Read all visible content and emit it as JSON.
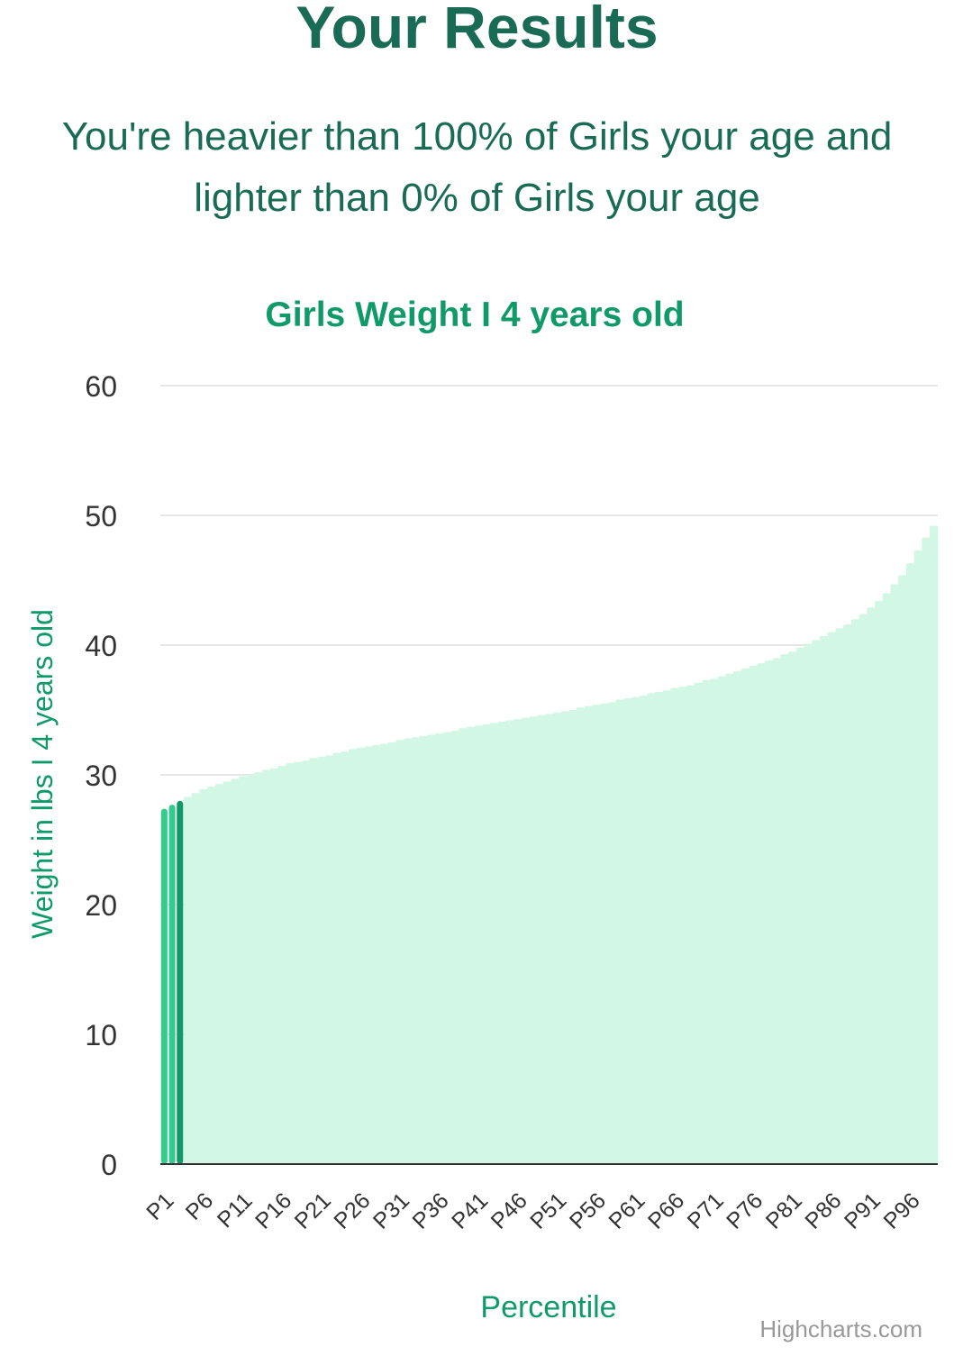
{
  "page": {
    "title": "Your Results",
    "result_line1": "You're heavier than 100% of Girls your age and",
    "result_line2": "lighter than 0% of Girls your age"
  },
  "colors": {
    "heading": "#1a6b56",
    "accent": "#0f9a68",
    "bar_fill": "#d2f8e5",
    "highlight_light": "#33cc8e",
    "highlight_dark": "#0f9a68"
  },
  "credit": "Highcharts.com",
  "chart_data": {
    "type": "bar",
    "title": "Girls Weight I 4 years old",
    "xlabel": "Percentile",
    "ylabel": "Weight in lbs I 4 years old",
    "ylim": [
      0,
      60
    ],
    "yticks": [
      0,
      10,
      20,
      30,
      40,
      50,
      60
    ],
    "grid": true,
    "legend": "none",
    "x_tick_labels": [
      "P1",
      "P6",
      "P11",
      "P16",
      "P21",
      "P26",
      "P31",
      "P36",
      "P41",
      "P46",
      "P51",
      "P56",
      "P61",
      "P66",
      "P71",
      "P76",
      "P81",
      "P86",
      "P91",
      "P96"
    ],
    "highlighted_bars": [
      {
        "index": 0,
        "tone": "light"
      },
      {
        "index": 1,
        "tone": "light"
      },
      {
        "index": 2,
        "tone": "dark"
      }
    ],
    "categories": [
      "P1",
      "P2",
      "P3",
      "P4",
      "P5",
      "P6",
      "P7",
      "P8",
      "P9",
      "P10",
      "P11",
      "P12",
      "P13",
      "P14",
      "P15",
      "P16",
      "P17",
      "P18",
      "P19",
      "P20",
      "P21",
      "P22",
      "P23",
      "P24",
      "P25",
      "P26",
      "P27",
      "P28",
      "P29",
      "P30",
      "P31",
      "P32",
      "P33",
      "P34",
      "P35",
      "P36",
      "P37",
      "P38",
      "P39",
      "P40",
      "P41",
      "P42",
      "P43",
      "P44",
      "P45",
      "P46",
      "P47",
      "P48",
      "P49",
      "P50",
      "P51",
      "P52",
      "P53",
      "P54",
      "P55",
      "P56",
      "P57",
      "P58",
      "P59",
      "P60",
      "P61",
      "P62",
      "P63",
      "P64",
      "P65",
      "P66",
      "P67",
      "P68",
      "P69",
      "P70",
      "P71",
      "P72",
      "P73",
      "P74",
      "P75",
      "P76",
      "P77",
      "P78",
      "P79",
      "P80",
      "P81",
      "P82",
      "P83",
      "P84",
      "P85",
      "P86",
      "P87",
      "P88",
      "P89",
      "P90",
      "P91",
      "P92",
      "P93",
      "P94",
      "P95",
      "P96",
      "P97",
      "P98",
      "P99"
    ],
    "values": [
      27.4,
      27.7,
      28.0,
      28.3,
      28.6,
      28.9,
      29.1,
      29.3,
      29.5,
      29.7,
      29.9,
      30.0,
      30.2,
      30.4,
      30.5,
      30.7,
      30.9,
      31.0,
      31.1,
      31.3,
      31.4,
      31.5,
      31.7,
      31.8,
      32.0,
      32.1,
      32.2,
      32.3,
      32.4,
      32.5,
      32.7,
      32.8,
      32.9,
      33.0,
      33.1,
      33.2,
      33.3,
      33.4,
      33.6,
      33.7,
      33.8,
      33.9,
      34.0,
      34.1,
      34.2,
      34.3,
      34.4,
      34.5,
      34.6,
      34.7,
      34.8,
      34.9,
      35.0,
      35.2,
      35.3,
      35.4,
      35.5,
      35.6,
      35.8,
      35.9,
      36.0,
      36.1,
      36.3,
      36.4,
      36.5,
      36.7,
      36.8,
      36.9,
      37.1,
      37.3,
      37.4,
      37.6,
      37.8,
      38.0,
      38.2,
      38.4,
      38.6,
      38.8,
      39.0,
      39.3,
      39.5,
      39.8,
      40.1,
      40.4,
      40.7,
      41.0,
      41.3,
      41.6,
      42.0,
      42.4,
      42.9,
      43.4,
      44.0,
      44.7,
      45.4,
      46.3,
      47.3,
      48.3,
      49.2
    ]
  }
}
